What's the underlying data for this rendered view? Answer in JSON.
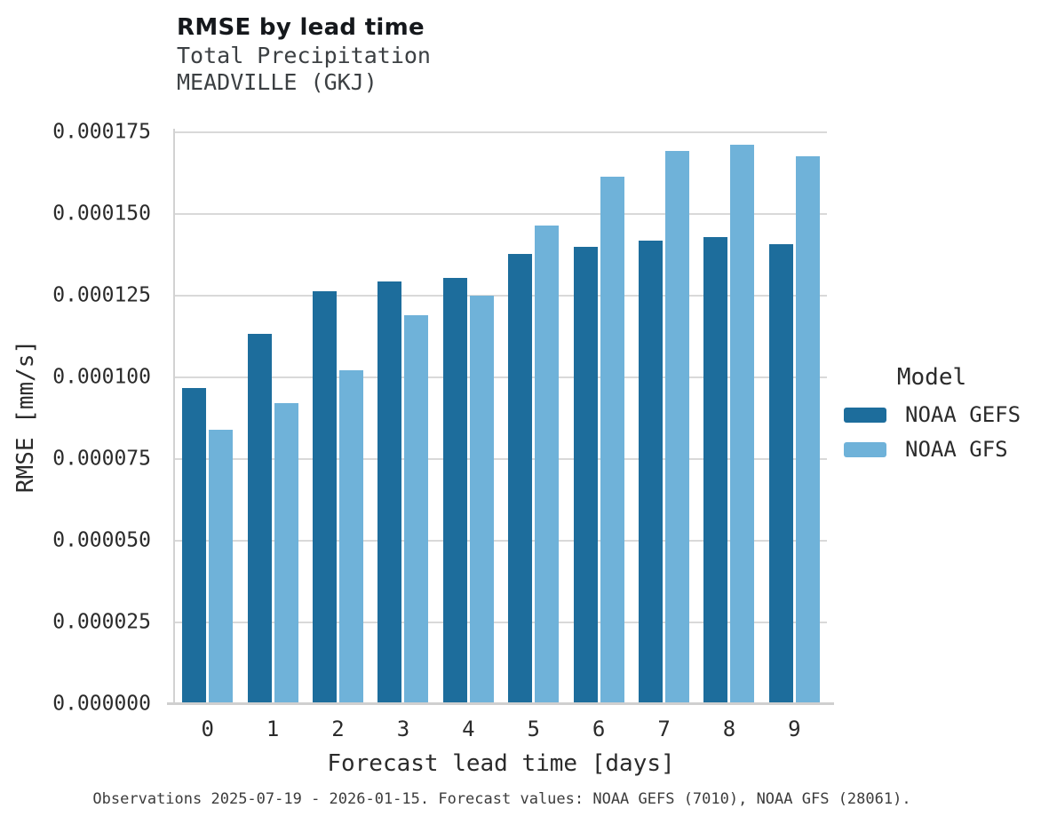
{
  "chart_data": {
    "type": "bar",
    "title": "RMSE by lead time",
    "subtitle": [
      "Total Precipitation",
      "MEADVILLE (GKJ)"
    ],
    "xlabel": "Forecast lead time [days]",
    "ylabel": "RMSE [mm/s]",
    "categories": [
      "0",
      "1",
      "2",
      "3",
      "4",
      "5",
      "6",
      "7",
      "8",
      "9"
    ],
    "series": [
      {
        "name": "NOAA GEFS",
        "color": "#1d6d9c",
        "values": [
          9.67e-05,
          0.0001134,
          0.0001263,
          0.0001294,
          0.0001304,
          0.0001378,
          0.0001399,
          0.0001419,
          0.000143,
          0.0001408
        ]
      },
      {
        "name": "NOAA GFS",
        "color": "#6fb2d9",
        "values": [
          8.4e-05,
          9.21e-05,
          0.0001021,
          0.0001192,
          0.0001251,
          0.0001465,
          0.0001616,
          0.0001693,
          0.0001712,
          0.0001677
        ]
      }
    ],
    "yticks": [
      0,
      2.5e-05,
      5e-05,
      7.5e-05,
      0.0001,
      0.000125,
      0.00015,
      0.000175
    ],
    "ytick_labels": [
      "0.000000",
      "0.000025",
      "0.000050",
      "0.000075",
      "0.000100",
      "0.000125",
      "0.000150",
      "0.000175"
    ],
    "ylim": [
      0,
      0.00017617
    ],
    "grid": true,
    "legend_title": "Model",
    "legend_position": "right",
    "caption": "Observations 2025-07-19 - 2026-01-15. Forecast values: NOAA GEFS (7010), NOAA GFS (28061).",
    "colors": {
      "gefs_bar": "#1d6d9c",
      "gfs_bar": "#6fb2d9",
      "gridline": "#d9d9d9",
      "axis_spine": "#d2d2d2",
      "text": "#2b2b2b"
    }
  }
}
